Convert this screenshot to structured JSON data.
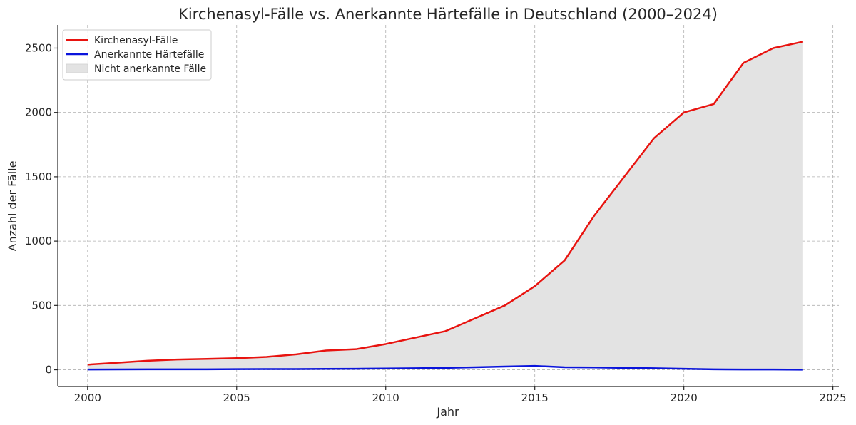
{
  "chart_data": {
    "type": "line",
    "title": "Kirchenasyl-Fälle vs. Anerkannte Härtefälle in Deutschland (2000–2024)",
    "xlabel": "Jahr",
    "ylabel": "Anzahl der Fälle",
    "xlim": [
      1999,
      2025.2
    ],
    "ylim": [
      -130,
      2680
    ],
    "xticks": [
      2000,
      2005,
      2010,
      2015,
      2020,
      2025
    ],
    "yticks": [
      0,
      500,
      1000,
      1500,
      2000,
      2500
    ],
    "grid": true,
    "legend_position": "top-left",
    "x": [
      2000,
      2001,
      2002,
      2003,
      2004,
      2005,
      2006,
      2007,
      2008,
      2009,
      2010,
      2011,
      2012,
      2013,
      2014,
      2015,
      2016,
      2017,
      2018,
      2019,
      2020,
      2021,
      2022,
      2023,
      2024
    ],
    "series": [
      {
        "name": "Kirchenasyl-Fälle",
        "color": "#e8130f",
        "values": [
          40,
          55,
          70,
          80,
          85,
          90,
          100,
          120,
          150,
          160,
          200,
          250,
          300,
          400,
          500,
          650,
          850,
          1200,
          1500,
          1800,
          2000,
          2065,
          2385,
          2500,
          2550
        ]
      },
      {
        "name": "Anerkannte Härtefälle",
        "color": "#0a14dc",
        "values": [
          2,
          3,
          4,
          4,
          4,
          5,
          6,
          6,
          7,
          8,
          10,
          12,
          15,
          20,
          25,
          30,
          20,
          18,
          15,
          12,
          8,
          4,
          2,
          2,
          1
        ]
      }
    ],
    "fill": {
      "name": "Nicht anerkannte Fälle",
      "color": "#e3e3e3"
    }
  }
}
